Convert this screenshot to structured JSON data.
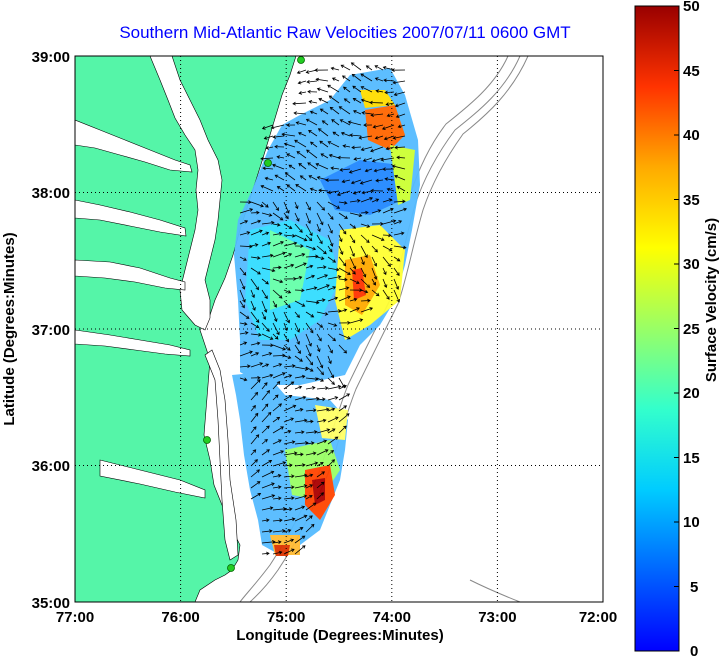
{
  "title": "Southern Mid-Atlantic Raw Velocities 2007/07/11 0600 GMT",
  "x_axis": {
    "label": "Longitude (Degrees:Minutes)",
    "ticks": [
      "77:00",
      "76:00",
      "75:00",
      "74:00",
      "73:00",
      "72:00"
    ],
    "range_deg_west": [
      77,
      72
    ]
  },
  "y_axis": {
    "label": "Latitude (Degrees:Minutes)",
    "ticks": [
      "39:00",
      "38:00",
      "37:00",
      "36:00",
      "35:00"
    ],
    "range_deg_north": [
      35,
      39
    ]
  },
  "colorbar": {
    "label": "Surface Velocity (cm/s)",
    "ticks": [
      "50",
      "45",
      "40",
      "35",
      "30",
      "25",
      "20",
      "15",
      "10",
      "5",
      "0"
    ],
    "range": [
      0,
      50
    ],
    "colormap": "jet"
  },
  "colors": {
    "land": "#55f5a8",
    "water": "#ffffff",
    "grid": "#000000",
    "bathymetry": "#888888",
    "station": "#22cc22",
    "title": "#0000ff"
  },
  "grid": true,
  "stations_count": 4
}
